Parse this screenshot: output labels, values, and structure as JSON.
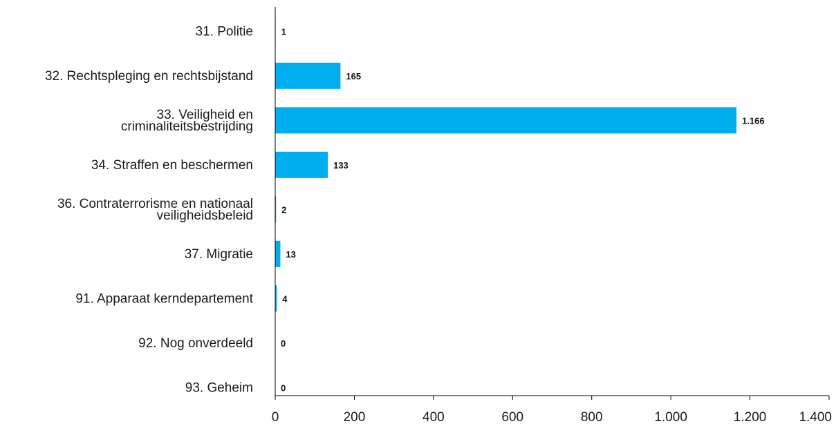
{
  "chart_data": {
    "type": "bar",
    "orientation": "horizontal",
    "categories": [
      [
        "31. Politie"
      ],
      [
        "32. Rechtspleging en rechtsbijstand"
      ],
      [
        "33. Veiligheid en",
        "criminaliteitsbestrijding"
      ],
      [
        "34. Straffen en beschermen"
      ],
      [
        "36. Contraterrorisme en nationaal",
        "veiligheidsbeleid"
      ],
      [
        "37. Migratie"
      ],
      [
        "91. Apparaat kerndepartement"
      ],
      [
        "92. Nog onverdeeld"
      ],
      [
        "93. Geheim"
      ]
    ],
    "values": [
      1,
      165,
      1166,
      133,
      2,
      13,
      4,
      0,
      0
    ],
    "value_labels": [
      "1",
      "165",
      "1.166",
      "133",
      "2",
      "13",
      "4",
      "0",
      "0"
    ],
    "xlim": [
      0,
      1400
    ],
    "xticks": [
      0,
      200,
      400,
      600,
      800,
      1000,
      1200,
      1400
    ],
    "xtick_labels": [
      "0",
      "200",
      "400",
      "600",
      "800",
      "1.000",
      "1.200",
      "1.400"
    ],
    "grid": false,
    "colors": {
      "bar": "#00aeef",
      "axis": "#000000"
    }
  }
}
